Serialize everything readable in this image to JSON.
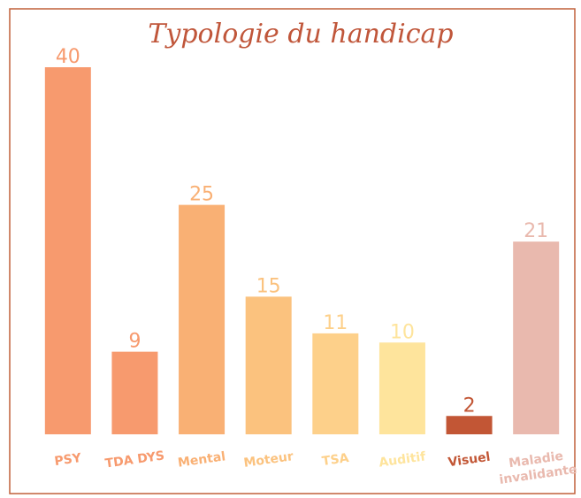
{
  "chart_data": {
    "type": "bar",
    "title": "Typologie du handicap",
    "categories": [
      "PSY",
      "TDA DYS",
      "Mental",
      "Moteur",
      "TSA",
      "Auditif",
      "Visuel",
      "Maladie invalidante"
    ],
    "values": [
      40,
      9,
      25,
      15,
      11,
      10,
      2,
      21
    ],
    "colors": [
      "#f79a6e",
      "#f79a6e",
      "#f9b074",
      "#fbc27e",
      "#fdd08a",
      "#fee49c",
      "#c25635",
      "#e9b9ae"
    ],
    "ylim": [
      0,
      40
    ]
  }
}
